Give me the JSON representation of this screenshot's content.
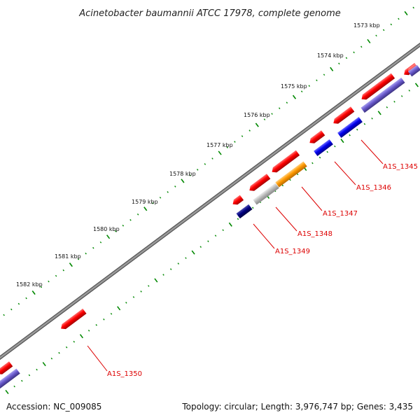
{
  "title": "Acinetobacter baumannii ATCC 17978, complete genome",
  "footer": {
    "accession": "Accession: NC_009085",
    "summary": "Topology: circular; Length: 3,976,747 bp; Genes: 3,435"
  },
  "ticks": [
    "1573 kbp",
    "1574 kbp",
    "1575 kbp",
    "1576 kbp",
    "1577 kbp",
    "1578 kbp",
    "1579 kbp",
    "1580 kbp",
    "1581 kbp",
    "1582 kbp"
  ],
  "genes": [
    {
      "label": "A1S_1345",
      "strand": "-",
      "color": "#ff0000"
    },
    {
      "label": "A1S_1346",
      "strand": "-",
      "color": "#ff0000"
    },
    {
      "label": "A1S_1347",
      "strand": "-",
      "color": "#ff0000"
    },
    {
      "label": "A1S_1348",
      "strand": "-",
      "color": "#ff0000"
    },
    {
      "label": "A1S_1349",
      "strand": "-",
      "color": "#ff0000"
    },
    {
      "label": "A1S_1350",
      "strand": "-",
      "color": "#ff0000"
    }
  ],
  "colors": {
    "backbone": "#808080",
    "tick_marks": "#008800",
    "gene_label": "#dd0000",
    "feature_red": "#ff0000",
    "feature_blue": "#0000ee",
    "feature_slate": "#6a5acd",
    "feature_navy": "#000080",
    "feature_orange": "#ff9900",
    "feature_gray": "#bbbbbb"
  }
}
